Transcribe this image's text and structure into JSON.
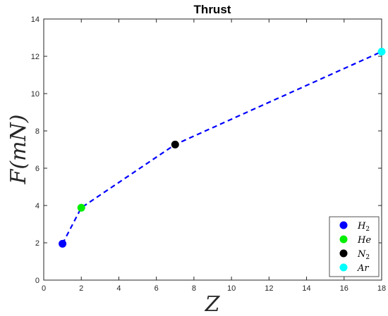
{
  "chart_data": {
    "type": "line",
    "title": "Thrust",
    "xlabel": "Z",
    "ylabel": "F(mN)",
    "xlim": [
      0,
      18
    ],
    "ylim": [
      0,
      14
    ],
    "xticks": [
      0,
      2,
      4,
      6,
      8,
      10,
      12,
      14,
      16,
      18
    ],
    "yticks": [
      0,
      2,
      4,
      6,
      8,
      10,
      12,
      14
    ],
    "grid": false,
    "line": {
      "style": "dashed",
      "color": "#0000ff",
      "x": [
        1,
        2,
        7,
        18
      ],
      "y": [
        1.95,
        3.88,
        7.27,
        12.25
      ]
    },
    "series": [
      {
        "name": "H2",
        "label_main": "H",
        "label_sub": "2",
        "x": 1,
        "y": 1.95,
        "color": "#0000ff"
      },
      {
        "name": "He",
        "label_main": "He",
        "label_sub": "",
        "x": 2,
        "y": 3.88,
        "color": "#00ee00"
      },
      {
        "name": "N2",
        "label_main": "N",
        "label_sub": "2",
        "x": 7,
        "y": 7.27,
        "color": "#000000"
      },
      {
        "name": "Ar",
        "label_main": "Ar",
        "label_sub": "",
        "x": 18,
        "y": 12.25,
        "color": "#00ffff"
      }
    ],
    "legend_position": "bottom-right"
  }
}
